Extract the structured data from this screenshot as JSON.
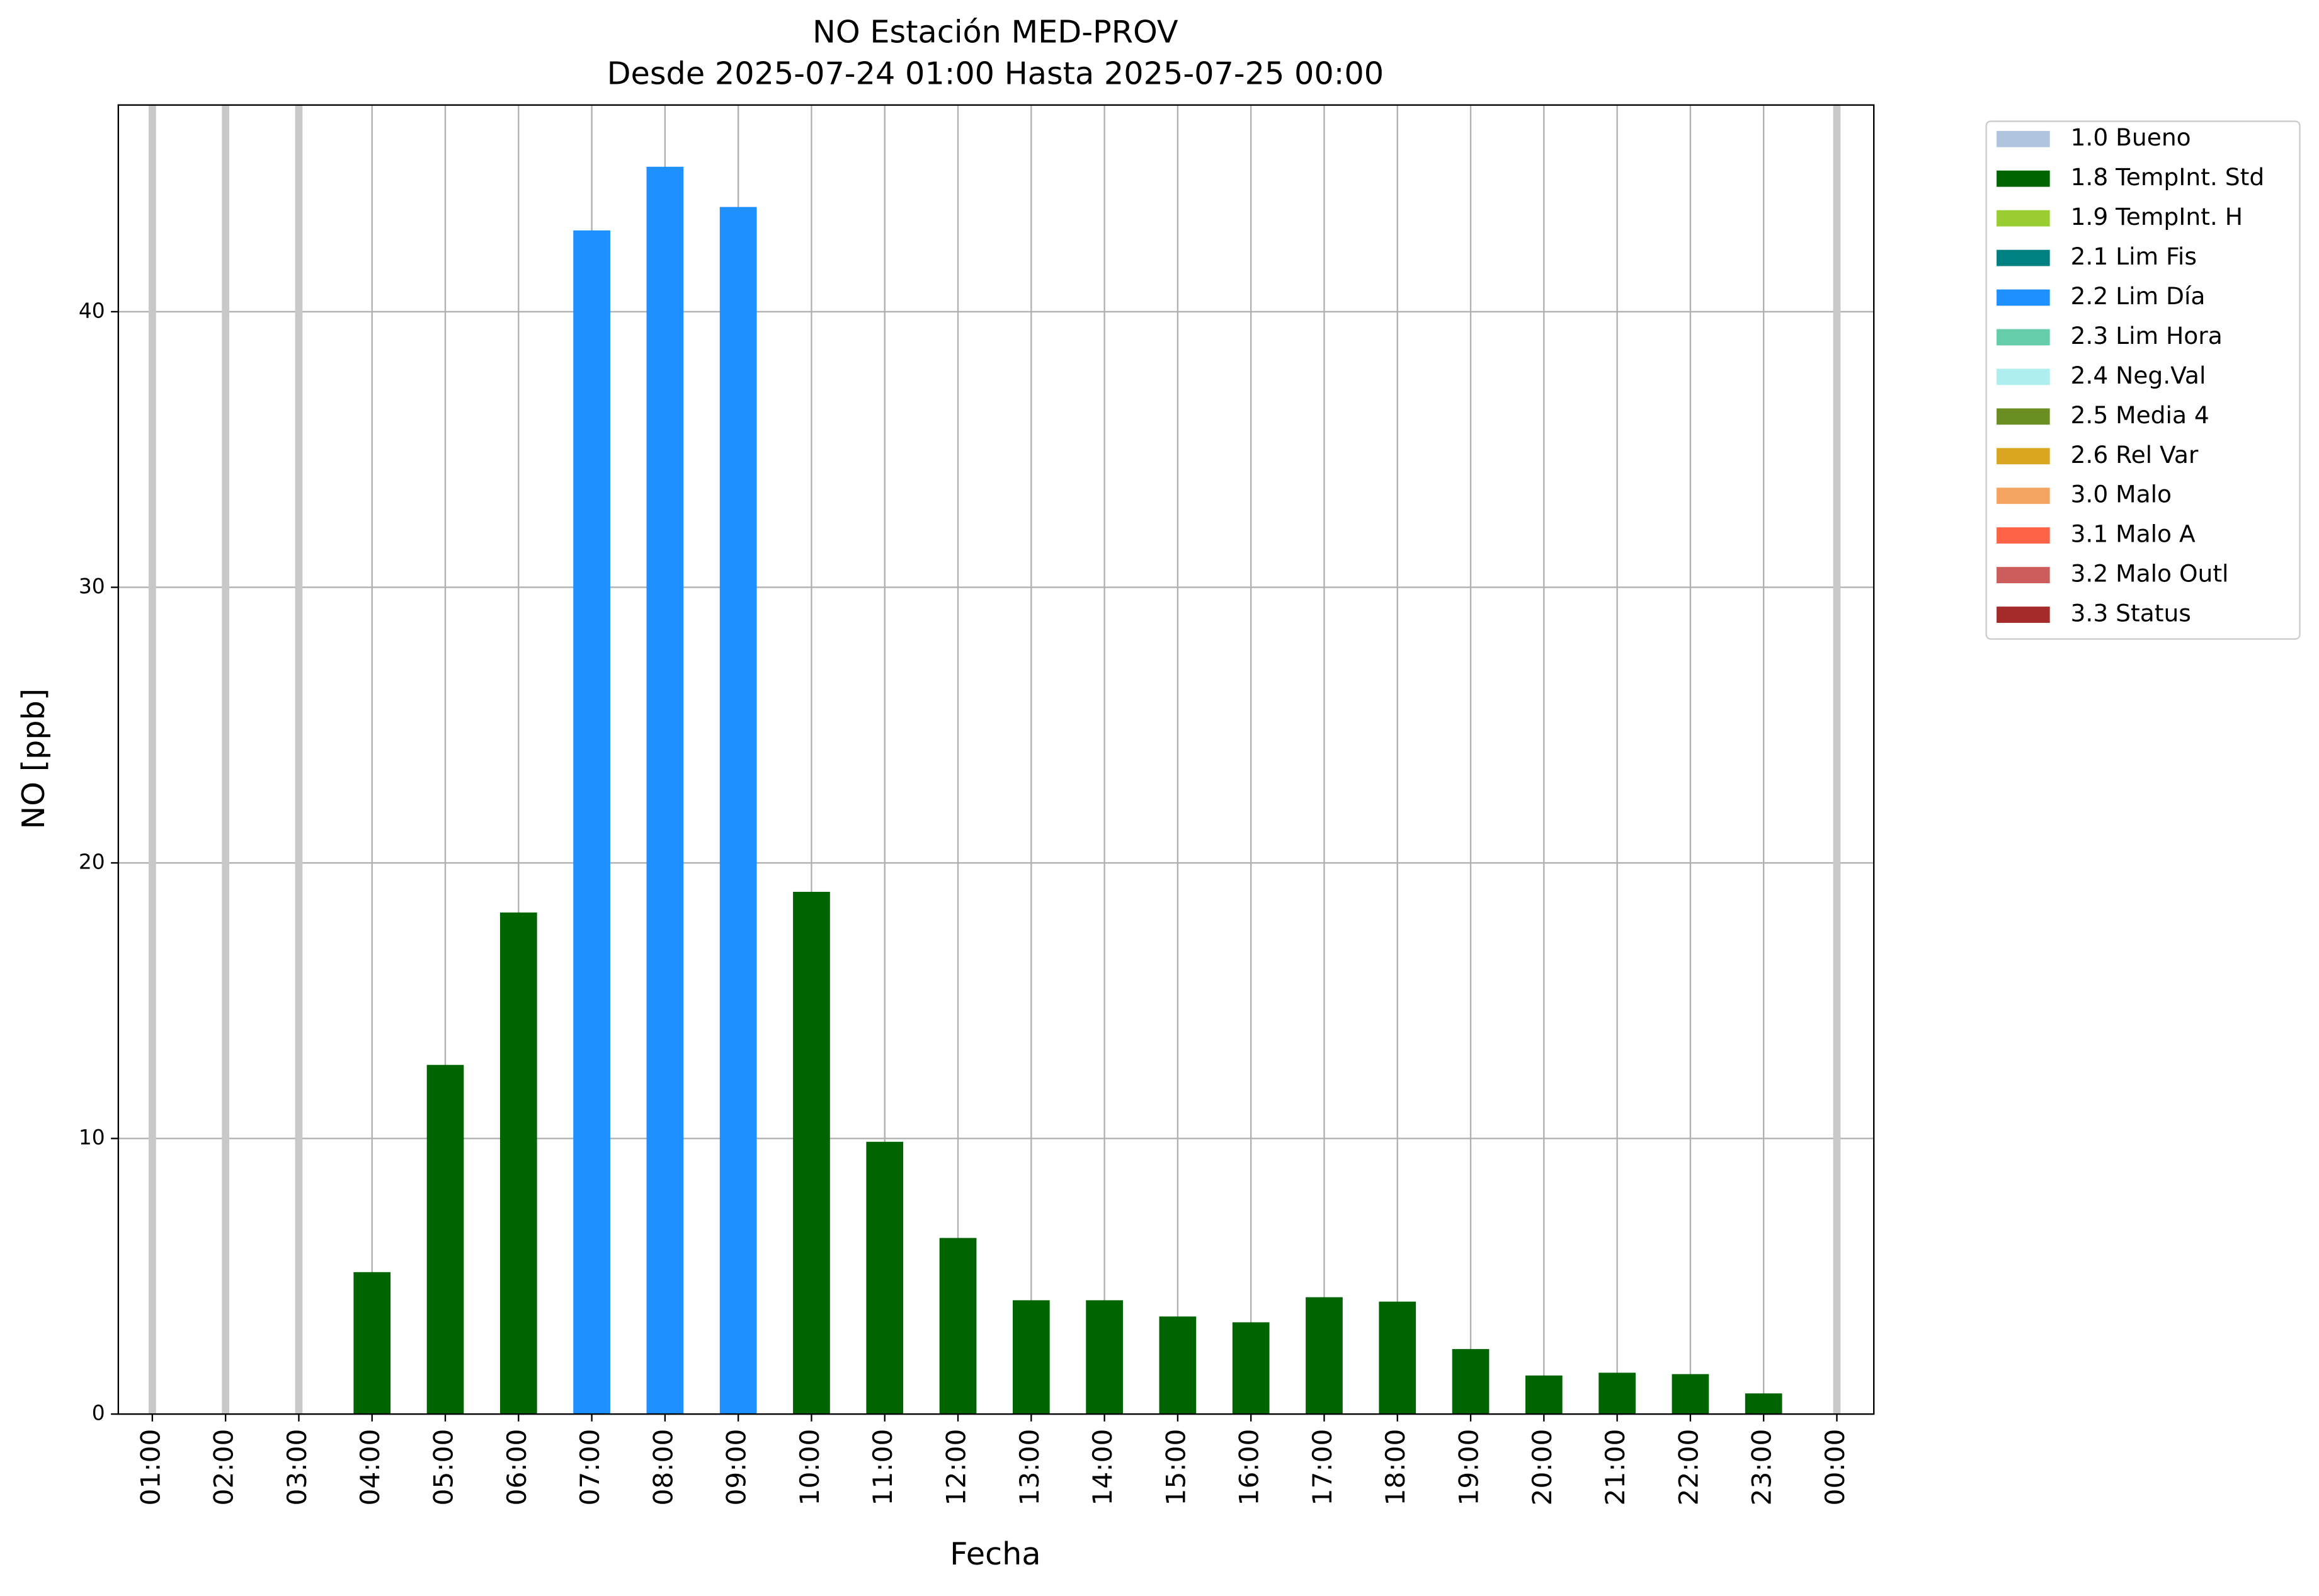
{
  "chart_data": {
    "type": "bar",
    "title": "NO Estación MED-PROV",
    "subtitle": "Desde 2025-07-24 01:00 Hasta 2025-07-25 00:00",
    "x_label": "Fecha",
    "y_label": "NO [ppb]",
    "categories": [
      "01:00",
      "02:00",
      "03:00",
      "04:00",
      "05:00",
      "06:00",
      "07:00",
      "08:00",
      "09:00",
      "10:00",
      "11:00",
      "12:00",
      "13:00",
      "14:00",
      "15:00",
      "16:00",
      "17:00",
      "18:00",
      "19:00",
      "20:00",
      "21:00",
      "22:00",
      "23:00",
      "00:00"
    ],
    "series": [
      {
        "name": "1.0 Bueno",
        "color": "#b0c4de",
        "values": [
          null,
          null,
          null,
          null,
          null,
          null,
          null,
          null,
          null,
          null,
          null,
          null,
          null,
          null,
          null,
          null,
          null,
          null,
          null,
          null,
          null,
          null,
          null,
          null
        ]
      },
      {
        "name": "1.8 TempInt. Std",
        "color": "#006400",
        "values": [
          null,
          null,
          null,
          5.15,
          12.67,
          18.2,
          null,
          null,
          null,
          18.95,
          9.88,
          6.39,
          4.13,
          4.13,
          3.54,
          3.33,
          4.24,
          4.08,
          2.36,
          1.4,
          1.5,
          1.45,
          0.75,
          null
        ]
      },
      {
        "name": "1.9 TempInt. H",
        "color": "#9acd32",
        "values": [
          null,
          null,
          null,
          null,
          null,
          null,
          null,
          null,
          null,
          null,
          null,
          null,
          null,
          null,
          null,
          null,
          null,
          null,
          null,
          null,
          null,
          null,
          null,
          null
        ]
      },
      {
        "name": "2.1 Lim Fis",
        "color": "#008080",
        "values": [
          null,
          null,
          null,
          null,
          null,
          null,
          null,
          null,
          null,
          null,
          null,
          null,
          null,
          null,
          null,
          null,
          null,
          null,
          null,
          null,
          null,
          null,
          null,
          null
        ]
      },
      {
        "name": "2.2 Lim Día",
        "color": "#1e90ff",
        "values": [
          null,
          null,
          null,
          null,
          null,
          null,
          42.95,
          45.26,
          43.8,
          null,
          null,
          null,
          null,
          null,
          null,
          null,
          null,
          null,
          null,
          null,
          null,
          null,
          null,
          null
        ]
      },
      {
        "name": "2.3 Lim Hora",
        "color": "#66cdaa",
        "values": [
          null,
          null,
          null,
          null,
          null,
          null,
          null,
          null,
          null,
          null,
          null,
          null,
          null,
          null,
          null,
          null,
          null,
          null,
          null,
          null,
          null,
          null,
          null,
          null
        ]
      },
      {
        "name": "2.4 Neg.Val",
        "color": "#afeeee",
        "values": [
          null,
          null,
          null,
          null,
          null,
          null,
          null,
          null,
          null,
          null,
          null,
          null,
          null,
          null,
          null,
          null,
          null,
          null,
          null,
          null,
          null,
          null,
          null,
          null
        ]
      },
      {
        "name": "2.5 Media 4",
        "color": "#6b8e23",
        "values": [
          null,
          null,
          null,
          null,
          null,
          null,
          null,
          null,
          null,
          null,
          null,
          null,
          null,
          null,
          null,
          null,
          null,
          null,
          null,
          null,
          null,
          null,
          null,
          null
        ]
      },
      {
        "name": "2.6 Rel Var",
        "color": "#daa520",
        "values": [
          null,
          null,
          null,
          null,
          null,
          null,
          null,
          null,
          null,
          null,
          null,
          null,
          null,
          null,
          null,
          null,
          null,
          null,
          null,
          null,
          null,
          null,
          null,
          null
        ]
      },
      {
        "name": "3.0 Malo",
        "color": "#f4a460",
        "values": [
          null,
          null,
          null,
          null,
          null,
          null,
          null,
          null,
          null,
          null,
          null,
          null,
          null,
          null,
          null,
          null,
          null,
          null,
          null,
          null,
          null,
          null,
          null,
          null
        ]
      },
      {
        "name": "3.1 Malo A",
        "color": "#ff6347",
        "values": [
          null,
          null,
          null,
          null,
          null,
          null,
          null,
          null,
          null,
          null,
          null,
          null,
          null,
          null,
          null,
          null,
          null,
          null,
          null,
          null,
          null,
          null,
          null,
          null
        ]
      },
      {
        "name": "3.2 Malo Outl",
        "color": "#cd5c5c",
        "values": [
          null,
          null,
          null,
          null,
          null,
          null,
          null,
          null,
          null,
          null,
          null,
          null,
          null,
          null,
          null,
          null,
          null,
          null,
          null,
          null,
          null,
          null,
          null,
          null
        ]
      },
      {
        "name": "3.3 Status",
        "color": "#a52a2a",
        "values": [
          null,
          null,
          null,
          null,
          null,
          null,
          null,
          null,
          null,
          null,
          null,
          null,
          null,
          null,
          null,
          null,
          null,
          null,
          null,
          null,
          null,
          null,
          null,
          null
        ]
      }
    ],
    "ylim": [
      0,
      47.5
    ],
    "yticks": [
      0,
      10,
      20,
      30,
      40
    ],
    "grid": true,
    "legend": "outside-upper-right"
  }
}
